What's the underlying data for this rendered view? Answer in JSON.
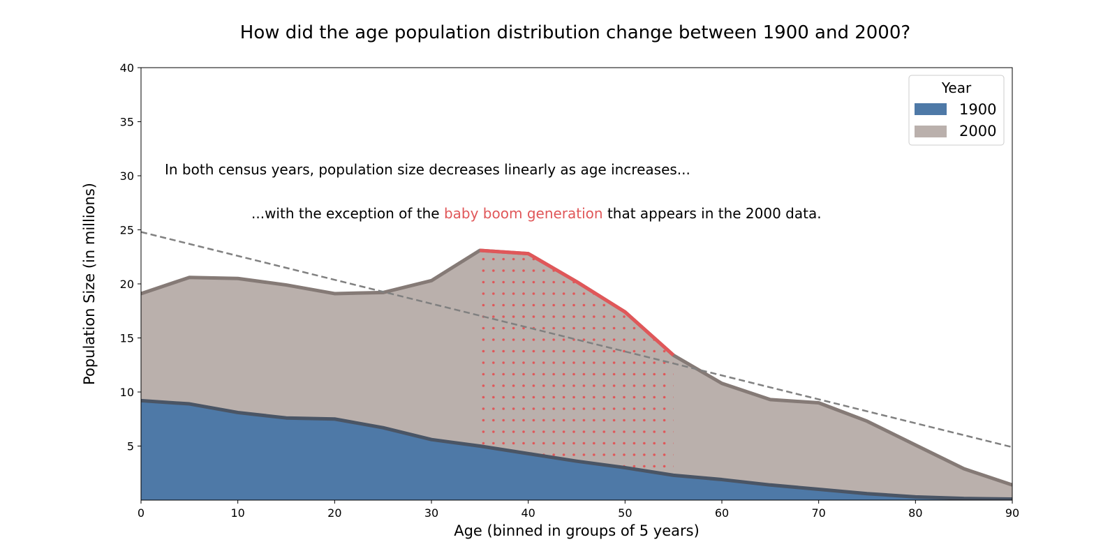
{
  "chart_data": {
    "type": "area",
    "title": "How did the age population distribution change between 1900 and 2000?",
    "xlabel": "Age (binned in groups of 5 years)",
    "ylabel": "Population Size (in millions)",
    "xlim": [
      0,
      90
    ],
    "ylim": [
      0,
      40
    ],
    "x_ticks": [
      "0",
      "10",
      "20",
      "30",
      "40",
      "50",
      "60",
      "70",
      "80",
      "90"
    ],
    "y_ticks": [
      "5",
      "10",
      "15",
      "20",
      "25",
      "30",
      "35",
      "40"
    ],
    "x": [
      0,
      5,
      10,
      15,
      20,
      25,
      30,
      35,
      40,
      45,
      50,
      55,
      60,
      65,
      70,
      75,
      80,
      85,
      90
    ],
    "series": [
      {
        "name": "1900",
        "color": "#4e79a7",
        "line_color": "#4a5565",
        "values": [
          9.2,
          8.9,
          8.1,
          7.6,
          7.5,
          6.7,
          5.6,
          5.0,
          4.3,
          3.6,
          3.0,
          2.3,
          1.9,
          1.4,
          1.0,
          0.6,
          0.3,
          0.15,
          0.1
        ]
      },
      {
        "name": "2000",
        "color": "#bab0ac",
        "line_color": "#857a76",
        "values": [
          19.1,
          20.6,
          20.5,
          19.9,
          19.1,
          19.2,
          20.3,
          23.1,
          22.8,
          20.2,
          17.4,
          13.4,
          10.8,
          9.3,
          9.0,
          7.3,
          5.1,
          2.9,
          1.4
        ]
      }
    ],
    "trendline": {
      "style": "dashed",
      "color": "#808080",
      "start": [
        0,
        24.8
      ],
      "end": [
        90,
        4.9
      ]
    },
    "highlight": {
      "label": "baby boom generation",
      "x_range": [
        35,
        55
      ],
      "color": "#e05759",
      "pattern": "dots"
    },
    "legend": {
      "title": "Year",
      "position": "top-right",
      "entries": [
        "1900",
        "2000"
      ]
    },
    "annotations": {
      "line1": "In both census years, population size decreases linearly as age increases...",
      "line2_before": "...with the exception of the ",
      "line2_highlight": "baby boom generation",
      "line2_after": " that appears in the 2000 data."
    }
  }
}
